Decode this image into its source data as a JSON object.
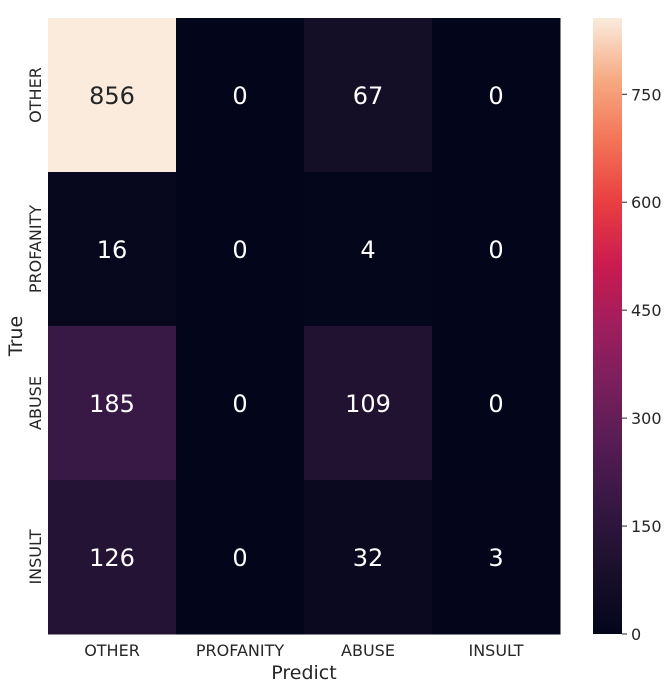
{
  "chart_data": {
    "type": "heatmap",
    "title": "",
    "xlabel": "Predict",
    "ylabel": "True",
    "x_categories": [
      "OTHER",
      "PROFANITY",
      "ABUSE",
      "INSULT"
    ],
    "y_categories": [
      "OTHER",
      "PROFANITY",
      "ABUSE",
      "INSULT"
    ],
    "values": [
      [
        856,
        0,
        67,
        0
      ],
      [
        16,
        0,
        4,
        0
      ],
      [
        185,
        0,
        109,
        0
      ],
      [
        126,
        0,
        32,
        3
      ]
    ],
    "value_labels": [
      [
        "856",
        "0",
        "67",
        "0"
      ],
      [
        "16",
        "0",
        "4",
        "0"
      ],
      [
        "185",
        "0",
        "109",
        "0"
      ],
      [
        "126",
        "0",
        "32",
        "3"
      ]
    ],
    "colorbar": {
      "min": 0,
      "max": 856,
      "ticks": [
        0,
        150,
        300,
        450,
        600,
        750
      ],
      "tick_labels": [
        "0",
        "150",
        "300",
        "450",
        "600",
        "750"
      ]
    },
    "colormap": "rocket",
    "grid": false,
    "legend": "colorbar-right"
  }
}
